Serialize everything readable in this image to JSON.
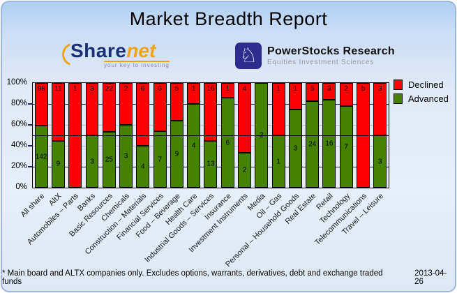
{
  "title": "Market Breadth Report",
  "logos": {
    "sharenet": {
      "brand_part1": "Share",
      "brand_part2": "net",
      "tagline": "your key to investing"
    },
    "powerstocks": {
      "knight_glyph": "♘",
      "name": "PowerStocks  Research",
      "subtitle": "Equities Investment Sciences"
    }
  },
  "legend": {
    "declined_label": "Declined",
    "advanced_label": "Advanced"
  },
  "colors": {
    "declined": "#ff0000",
    "advanced": "#458200",
    "grid_major": "#1a1a75",
    "grid_minor": "#bcbcbc",
    "reference_line": "#000000"
  },
  "footer": {
    "note": "* Main board and ALTX companies only. Excludes options, warrants, derivatives, debt and exchange traded funds",
    "date": "2013-04-26"
  },
  "chart_data": {
    "type": "bar",
    "stacked": true,
    "title": "Market Breadth Report",
    "bar_scale": "each bar normalized to 100%, split = advanced/(advanced+declined)",
    "categories": [
      "All share",
      "AltX",
      "Automobiles – Parts",
      "Banks",
      "Basic Resources",
      "Chemicals",
      "Construction – Materials",
      "Financial Services",
      "Food – Beverage",
      "Health Care",
      "Industrial Goods – Services",
      "Insurance",
      "Investment Instruments",
      "Media",
      "Oil – Gas",
      "Personal – Household Goods",
      "Real Estate",
      "Retail",
      "Technology",
      "Telecommunications",
      "Travel – Leisure"
    ],
    "series": [
      {
        "name": "Declined",
        "color": "#ff0000",
        "values": [
          98,
          11,
          1,
          3,
          22,
          2,
          6,
          6,
          5,
          1,
          16,
          1,
          4,
          0,
          1,
          1,
          5,
          3,
          2,
          5,
          3
        ]
      },
      {
        "name": "Advanced",
        "color": "#458200",
        "values": [
          142,
          9,
          0,
          3,
          25,
          3,
          4,
          7,
          9,
          4,
          13,
          6,
          2,
          2,
          1,
          3,
          24,
          16,
          7,
          0,
          3
        ]
      }
    ],
    "y_axis": {
      "ticks": [
        "100%",
        "80%",
        "60%",
        "40%",
        "20%",
        "0%"
      ],
      "min": 0,
      "max": 100
    },
    "reference_line_pct": 50,
    "grid": "horizontal lines at 20/40/60/80%, visible between bars",
    "legend_position": "right"
  }
}
